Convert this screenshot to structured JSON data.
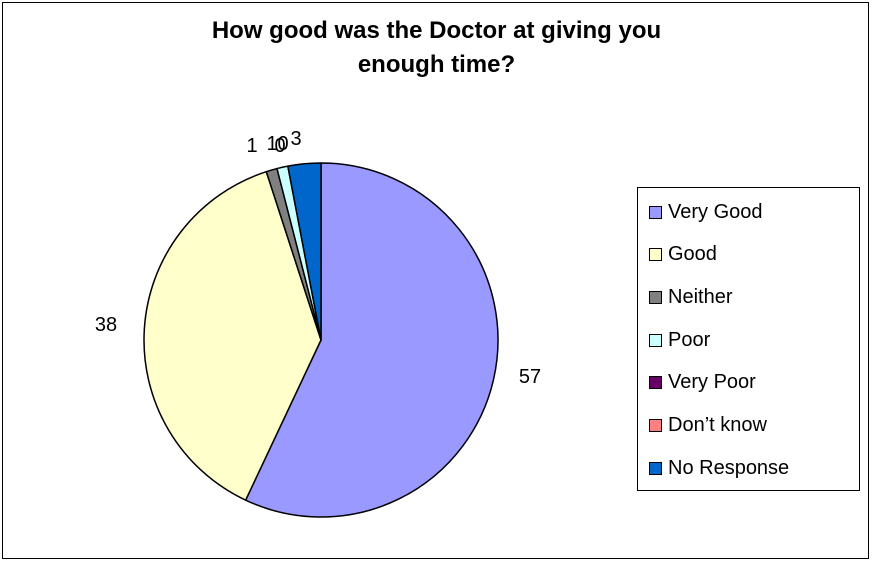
{
  "chart_data": {
    "type": "pie",
    "title_lines": [
      "How good was the Doctor at giving you",
      "enough time?"
    ],
    "categories": [
      "Very Good",
      "Good",
      "Neither",
      "Poor",
      "Very Poor",
      "Don’t know",
      "No Response"
    ],
    "values": [
      57,
      38,
      1,
      1,
      0,
      0,
      3
    ],
    "data_labels": [
      "57",
      "38",
      "1",
      "1",
      "0",
      "0",
      "3"
    ],
    "colors": [
      "#9999FF",
      "#FFFFCC",
      "#808080",
      "#CCFFFF",
      "#660066",
      "#FF8080",
      "#0066CC"
    ],
    "legend_position": "right",
    "start_angle": "12 o'clock",
    "direction": "clockwise"
  }
}
